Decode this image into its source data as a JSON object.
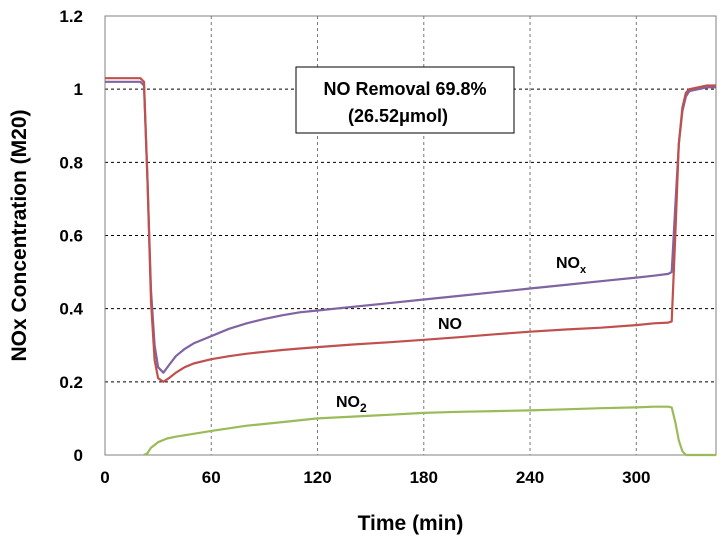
{
  "chart_data": {
    "type": "line",
    "title": "",
    "xlabel": "Time (min)",
    "ylabel": "NOx Concentration (M20)",
    "xlim": [
      0,
      345
    ],
    "ylim": [
      0,
      1.2
    ],
    "xticks": [
      0,
      60,
      120,
      180,
      240,
      300
    ],
    "yticks": [
      0,
      0.2,
      0.4,
      0.6,
      0.8,
      1,
      1.2
    ],
    "xtick_labels": [
      "0",
      "60",
      "120",
      "180",
      "240",
      "300"
    ],
    "ytick_labels": [
      "0",
      "0.2",
      "0.4",
      "0.6",
      "0.8",
      "1",
      "1.2"
    ],
    "grid": {
      "x": "dashed",
      "y": "dashed"
    },
    "annotation": {
      "line1": "NO Removal  69.8%",
      "line2": "(26.52μmol)"
    },
    "series": [
      {
        "name": "NOx",
        "label_main": "NO",
        "label_sub": "x",
        "color": "#8064A2",
        "x": [
          0,
          10,
          20,
          22,
          24,
          26,
          28,
          30,
          33,
          36,
          40,
          45,
          50,
          60,
          70,
          80,
          90,
          100,
          110,
          120,
          140,
          160,
          180,
          200,
          220,
          240,
          260,
          280,
          300,
          310,
          318,
          320,
          322,
          324,
          326,
          328,
          330,
          335,
          340,
          345
        ],
        "y": [
          1.02,
          1.02,
          1.02,
          1.01,
          0.75,
          0.45,
          0.3,
          0.24,
          0.225,
          0.245,
          0.27,
          0.29,
          0.305,
          0.325,
          0.345,
          0.36,
          0.372,
          0.382,
          0.39,
          0.395,
          0.405,
          0.415,
          0.425,
          0.435,
          0.445,
          0.455,
          0.465,
          0.475,
          0.485,
          0.49,
          0.495,
          0.5,
          0.68,
          0.85,
          0.94,
          0.98,
          0.995,
          1.0,
          1.005,
          1.005
        ]
      },
      {
        "name": "NO",
        "label_main": "NO",
        "label_sub": "",
        "color": "#C0504D",
        "x": [
          0,
          10,
          20,
          22,
          24,
          26,
          28,
          30,
          33,
          36,
          40,
          45,
          50,
          60,
          70,
          80,
          90,
          100,
          110,
          120,
          140,
          160,
          180,
          200,
          220,
          240,
          260,
          280,
          300,
          310,
          318,
          320,
          322,
          324,
          326,
          328,
          330,
          335,
          340,
          345
        ],
        "y": [
          1.03,
          1.03,
          1.03,
          1.02,
          0.75,
          0.42,
          0.26,
          0.21,
          0.2,
          0.21,
          0.225,
          0.24,
          0.25,
          0.262,
          0.27,
          0.277,
          0.282,
          0.287,
          0.291,
          0.295,
          0.302,
          0.308,
          0.315,
          0.322,
          0.33,
          0.337,
          0.343,
          0.348,
          0.355,
          0.36,
          0.362,
          0.365,
          0.6,
          0.85,
          0.95,
          0.99,
          1.0,
          1.005,
          1.01,
          1.01
        ]
      },
      {
        "name": "NO2",
        "label_main": "NO",
        "label_sub": "2",
        "color": "#9BBB59",
        "x": [
          22,
          24,
          26,
          30,
          35,
          40,
          50,
          60,
          80,
          100,
          120,
          140,
          160,
          180,
          200,
          220,
          240,
          260,
          280,
          300,
          310,
          318,
          320,
          322,
          324,
          326,
          328,
          330,
          340,
          345
        ],
        "y": [
          0.0,
          0.005,
          0.02,
          0.035,
          0.045,
          0.05,
          0.058,
          0.066,
          0.08,
          0.09,
          0.1,
          0.105,
          0.11,
          0.115,
          0.118,
          0.12,
          0.122,
          0.125,
          0.128,
          0.13,
          0.132,
          0.132,
          0.13,
          0.09,
          0.04,
          0.01,
          0.0,
          0.0,
          0.0,
          0.0
        ]
      }
    ]
  }
}
